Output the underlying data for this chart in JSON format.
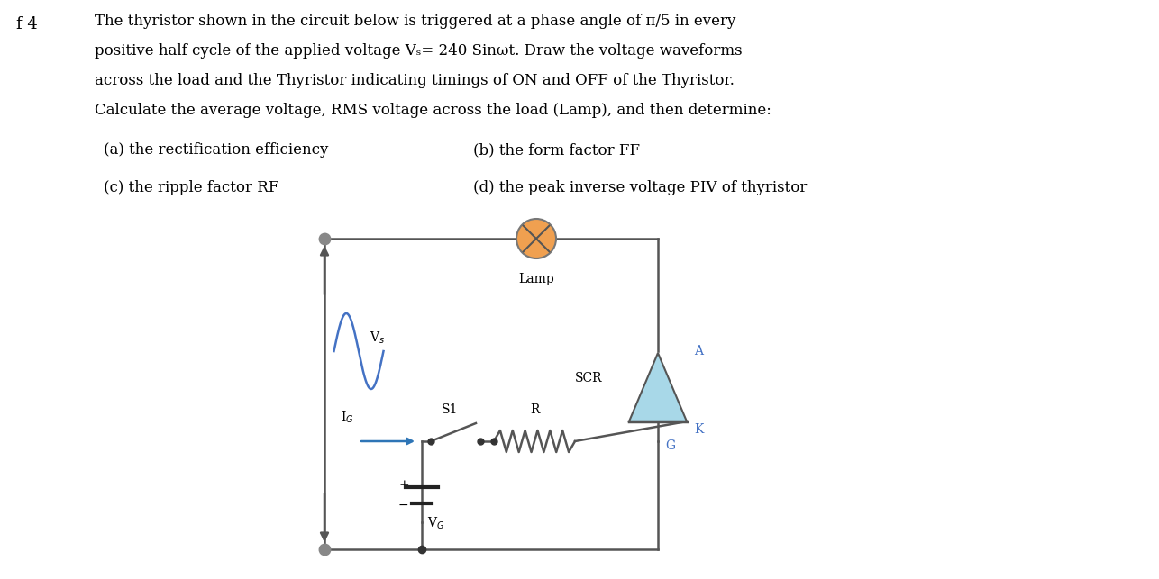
{
  "page_label": "f 4",
  "title_lines": [
    "The thyristor shown in the circuit below is triggered at a phase angle of π/5 in every",
    "positive half cycle of the applied voltage Vₛ= 240 Sinωt. Draw the voltage waveforms",
    "across the load and the Thyristor indicating timings of ON and OFF of the Thyristor.",
    "Calculate the average voltage, RMS voltage across the load (Lamp), and then determine:"
  ],
  "items": [
    {
      "label": "(a) the rectification efficiency",
      "col": 0
    },
    {
      "label": "(b) the form factor FF",
      "col": 1
    },
    {
      "label": "(c) the ripple factor RF",
      "col": 0
    },
    {
      "label": "(d) the peak inverse voltage PIV of thyristor",
      "col": 1
    }
  ],
  "bg_color": "#ffffff",
  "text_color": "#000000",
  "wire_color": "#555555",
  "blue_color": "#4472C4",
  "teal_color": "#2E75B6",
  "scr_color": "#A8D8E8",
  "lamp_color": "#F0A050"
}
